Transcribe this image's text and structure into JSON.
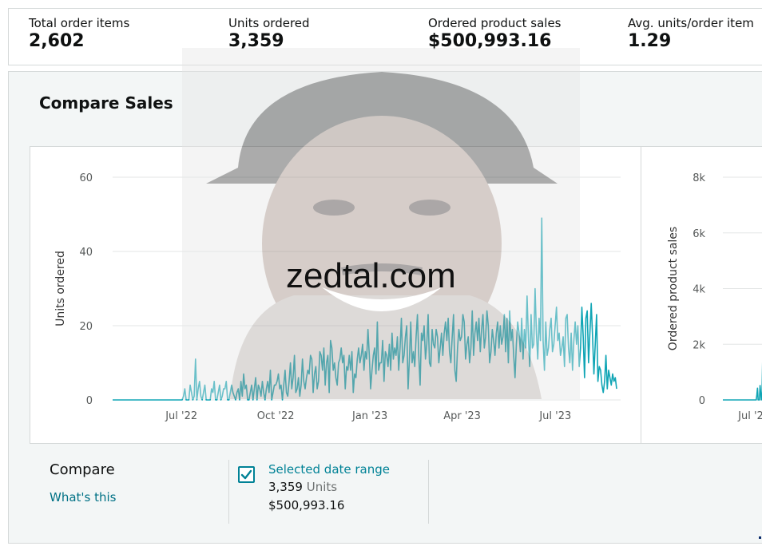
{
  "metrics": [
    {
      "label": "Total order items",
      "value": "2,602"
    },
    {
      "label": "Units ordered",
      "value": "3,359"
    },
    {
      "label": "Ordered product sales",
      "value": "$500,993.16"
    },
    {
      "label": "Avg. units/order item",
      "value": "1.29"
    }
  ],
  "compare_sales": {
    "title": "Compare Sales",
    "compare_label": "Compare",
    "whats_this": "What's this",
    "selected_range": {
      "checked": true,
      "label": "Selected date range",
      "units_value": "3,359",
      "units_label": "Units",
      "sales": "$500,993.16"
    }
  },
  "watermark": {
    "text": "zedtal.com"
  },
  "colors": {
    "series": "#10a5b5",
    "accent": "#008296",
    "link": "#007185",
    "panel_bg": "#f3f6f6"
  },
  "icons": {
    "checkbox": "checkmark-icon"
  },
  "chart_data": [
    {
      "type": "line",
      "ylabel": "Units ordered",
      "xlabel": "",
      "ylim": [
        0,
        60
      ],
      "yticks": [
        "0",
        "20",
        "40",
        "60"
      ],
      "xticks": [
        "Jul '22",
        "Oct '22",
        "Jan '23",
        "Apr '23",
        "Jul '23"
      ],
      "x_start": "2022-05-26",
      "x_end": "2023-09-30",
      "grid": true,
      "series": [
        {
          "values": [
            0,
            0,
            0,
            0,
            0,
            0,
            0,
            0,
            0,
            0,
            0,
            0,
            0,
            0,
            0,
            0,
            0,
            0,
            0,
            0,
            0,
            0,
            0,
            0,
            0,
            0,
            0,
            0,
            0,
            0,
            0,
            0,
            0,
            0,
            0,
            0,
            0,
            0,
            0,
            0,
            0,
            0,
            0,
            0,
            0,
            0,
            0,
            0,
            0,
            0,
            0,
            0,
            0,
            1,
            3,
            0,
            0,
            0,
            4,
            2,
            0,
            1,
            11,
            0,
            3,
            5,
            1,
            0,
            2,
            4,
            0,
            0,
            0,
            0,
            3,
            2,
            5,
            0,
            0,
            2,
            4,
            0,
            1,
            3,
            3,
            5,
            0,
            0,
            2,
            4,
            2,
            1,
            0,
            2,
            3,
            0,
            5,
            1,
            7,
            3,
            4,
            0,
            0,
            2,
            4,
            0,
            3,
            6,
            0,
            4,
            3,
            1,
            5,
            2,
            0,
            3,
            5,
            2,
            8,
            0,
            2,
            4,
            4,
            5,
            7,
            3,
            4,
            0,
            4,
            8,
            2,
            1,
            5,
            10,
            3,
            6,
            12,
            2,
            3,
            6,
            1,
            4,
            11,
            5,
            3,
            6,
            8,
            7,
            12,
            11,
            2,
            7,
            9,
            3,
            5,
            13,
            12,
            8,
            14,
            4,
            10,
            12,
            2,
            16,
            14,
            8,
            10,
            6,
            4,
            10,
            11,
            14,
            10,
            12,
            3,
            9,
            8,
            12,
            8,
            13,
            2,
            7,
            6,
            11,
            14,
            10,
            12,
            15,
            8,
            13,
            11,
            19,
            12,
            3,
            8,
            12,
            14,
            7,
            21,
            8,
            10,
            10,
            16,
            5,
            13,
            12,
            9,
            15,
            8,
            18,
            11,
            14,
            12,
            17,
            8,
            14,
            22,
            10,
            12,
            17,
            20,
            3,
            11,
            21,
            10,
            13,
            9,
            17,
            23,
            12,
            4,
            18,
            16,
            20,
            11,
            15,
            23,
            10,
            9,
            19,
            15,
            14,
            19,
            17,
            10,
            14,
            18,
            12,
            18,
            21,
            16,
            22,
            13,
            10,
            17,
            23,
            8,
            5,
            14,
            19,
            16,
            17,
            23,
            21,
            11,
            15,
            17,
            10,
            14,
            24,
            12,
            18,
            21,
            16,
            22,
            13,
            19,
            23,
            14,
            17,
            24,
            20,
            10,
            13,
            19,
            16,
            12,
            18,
            21,
            14,
            20,
            15,
            17,
            23,
            13,
            22,
            10,
            24,
            16,
            19,
            12,
            6,
            15,
            21,
            18,
            13,
            22,
            11,
            19,
            14,
            28,
            17,
            9,
            23,
            14,
            15,
            30,
            18,
            11,
            22,
            16,
            49,
            16,
            8,
            21,
            12,
            14,
            19,
            22,
            13,
            15,
            20,
            25,
            16,
            18,
            12,
            14,
            17,
            9,
            22,
            23,
            14,
            10,
            18,
            8,
            16,
            21,
            15,
            20,
            9,
            14,
            25,
            17,
            6,
            22,
            24,
            10,
            18,
            26,
            17,
            7,
            15,
            23,
            5,
            9,
            8,
            4,
            2,
            5,
            12,
            3,
            8,
            6,
            4,
            7,
            5,
            6,
            3
          ]
        }
      ]
    },
    {
      "type": "line",
      "ylabel": "Ordered product sales",
      "xlabel": "",
      "yticks": [
        "0",
        "2k",
        "4k",
        "6k",
        "8k"
      ],
      "ylim": [
        0,
        8000
      ],
      "xticks": [
        "Jul '2"
      ],
      "x_start": "2022-05-26",
      "x_end": "2022-07-08",
      "grid": true,
      "series": [
        {
          "values": [
            0,
            0,
            0,
            0,
            0,
            0,
            0,
            0,
            0,
            0,
            0,
            0,
            0,
            0,
            0,
            0,
            0,
            0,
            0,
            0,
            0,
            0,
            0,
            0,
            0,
            0,
            0,
            0,
            0,
            0,
            0,
            0,
            0,
            0,
            0,
            0,
            0,
            0,
            0,
            0,
            0,
            0,
            0,
            0,
            0,
            0,
            0,
            0,
            0,
            0,
            0,
            0,
            0,
            180,
            420,
            0,
            0,
            0,
            520,
            260,
            0,
            140,
            1350,
            0,
            380,
            640,
            130
          ]
        }
      ]
    }
  ]
}
